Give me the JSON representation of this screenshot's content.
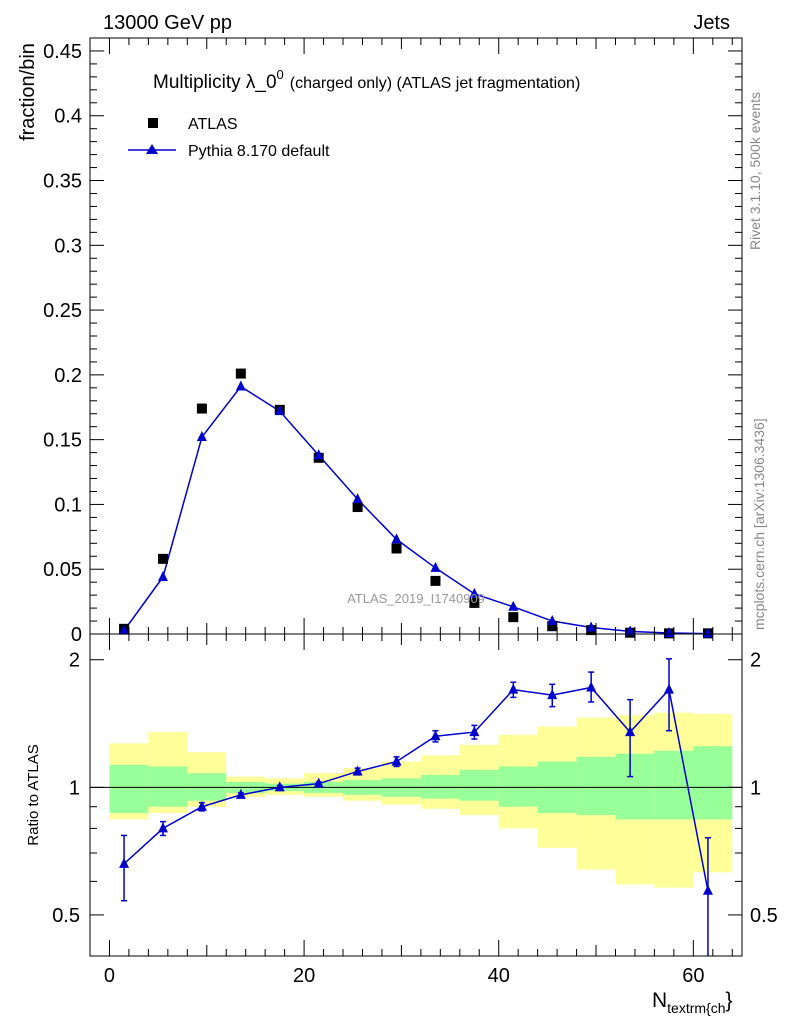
{
  "header": {
    "energy_label": "13000 GeV pp",
    "process_label": "Jets"
  },
  "side": {
    "rivet_label": "Rivet 3.1.10,  500k events",
    "mcplots_label": "mcplots.cern.ch [arXiv:1306.3436]"
  },
  "watermark": "ATLAS_2019_I1740909",
  "chart_data": {
    "type": "scatter",
    "title_main": "Multiplicity λ_0",
    "title_sup": "0",
    "title_rest": "(charged only) (ATLAS jet fragmentation)",
    "ylabel": "fraction/bin",
    "ratio_ylabel": "Ratio to ATLAS",
    "xlabel_main": "N",
    "xlabel_sub": "textrm{ch",
    "xlabel_close": "}",
    "xlim": [
      -2,
      65
    ],
    "ylim": [
      0,
      0.46
    ],
    "ratio_ylim": [
      0.4,
      2.3
    ],
    "xticks": [
      0,
      20,
      40,
      60
    ],
    "xtick_labels": [
      "0",
      "20",
      "40",
      "60"
    ],
    "yticks": [
      0,
      0.05,
      0.1,
      0.15,
      0.2,
      0.25,
      0.3,
      0.35,
      0.4,
      0.45
    ],
    "ytick_labels": [
      "0",
      "0.05",
      "0.1",
      "0.15",
      "0.2",
      "0.25",
      "0.3",
      "0.35",
      "0.4",
      "0.45"
    ],
    "ratio_yticks": [
      0.5,
      1,
      2
    ],
    "ratio_ytick_labels": [
      "0.5",
      "1",
      "2"
    ],
    "legend": [
      {
        "name": "ATLAS",
        "marker": "square",
        "color": "#000000"
      },
      {
        "name": "Pythia 8.170 default",
        "marker": "triangle",
        "color": "#0000cc"
      }
    ],
    "bin_edges": [
      0,
      4,
      8,
      12,
      16,
      20,
      24,
      28,
      32,
      36,
      40,
      44,
      48,
      52,
      56,
      60,
      64
    ],
    "x": [
      1.5,
      5.5,
      9.5,
      13.5,
      17.5,
      21.5,
      25.5,
      29.5,
      33.5,
      37.5,
      41.5,
      45.5,
      49.5,
      53.5,
      57.5,
      61.5
    ],
    "series": [
      {
        "name": "ATLAS",
        "values": [
          0.004,
          0.058,
          0.174,
          0.201,
          0.173,
          0.136,
          0.098,
          0.066,
          0.041,
          0.024,
          0.013,
          0.006,
          0.003,
          0.001,
          0.0005,
          0.0005
        ]
      },
      {
        "name": "Pythia 8.170 default",
        "values": [
          0.0026,
          0.044,
          0.152,
          0.191,
          0.172,
          0.138,
          0.104,
          0.073,
          0.051,
          0.031,
          0.021,
          0.01,
          0.005,
          0.002,
          0.0008,
          0.0003
        ]
      }
    ],
    "ratio": {
      "values": [
        0.66,
        0.8,
        0.9,
        0.96,
        1.0,
        1.02,
        1.09,
        1.15,
        1.32,
        1.35,
        1.7,
        1.65,
        1.72,
        1.35,
        1.7,
        0.57
      ],
      "err_low": [
        0.12,
        0.03,
        0.02,
        0.01,
        0.01,
        0.01,
        0.02,
        0.03,
        0.04,
        0.05,
        0.07,
        0.1,
        0.13,
        0.29,
        0.34,
        0.25
      ],
      "err_high": [
        0.11,
        0.03,
        0.02,
        0.01,
        0.01,
        0.01,
        0.02,
        0.03,
        0.04,
        0.05,
        0.07,
        0.1,
        0.15,
        0.26,
        0.31,
        0.19
      ],
      "band_stat": [
        [
          0.87,
          1.13
        ],
        [
          0.9,
          1.12
        ],
        [
          0.93,
          1.08
        ],
        [
          0.97,
          1.03
        ],
        [
          0.98,
          1.02
        ],
        [
          0.97,
          1.03
        ],
        [
          0.96,
          1.04
        ],
        [
          0.95,
          1.05
        ],
        [
          0.94,
          1.07
        ],
        [
          0.93,
          1.1
        ],
        [
          0.9,
          1.12
        ],
        [
          0.87,
          1.15
        ],
        [
          0.86,
          1.18
        ],
        [
          0.84,
          1.2
        ],
        [
          0.84,
          1.22
        ],
        [
          0.84,
          1.25
        ]
      ],
      "band_total": [
        [
          0.84,
          1.27
        ],
        [
          0.87,
          1.35
        ],
        [
          0.9,
          1.21
        ],
        [
          0.95,
          1.06
        ],
        [
          0.96,
          1.05
        ],
        [
          0.95,
          1.08
        ],
        [
          0.93,
          1.11
        ],
        [
          0.91,
          1.15
        ],
        [
          0.89,
          1.19
        ],
        [
          0.86,
          1.26
        ],
        [
          0.8,
          1.33
        ],
        [
          0.72,
          1.39
        ],
        [
          0.64,
          1.46
        ],
        [
          0.59,
          1.48
        ],
        [
          0.58,
          1.5
        ],
        [
          0.63,
          1.49
        ]
      ]
    },
    "colors": {
      "data": "#000000",
      "mc": "#0000cc",
      "band_stat": "#99ff99",
      "band_total": "#ffff99",
      "axis": "#000000",
      "side_text": "#888888"
    }
  }
}
